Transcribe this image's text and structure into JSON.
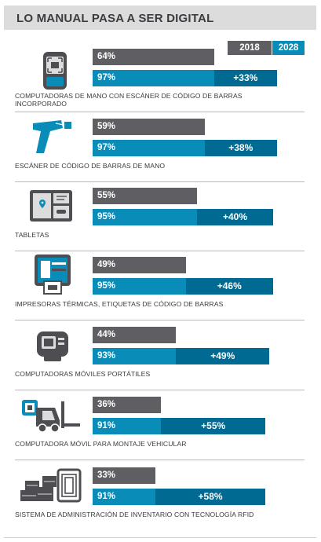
{
  "title": "LO MANUAL PASA A SER DIGITAL",
  "legend": {
    "2018": "2018",
    "2028": "2028"
  },
  "colors": {
    "y2018": "#5f5f63",
    "y2028": "#0a8cb8",
    "increase": "#006a92",
    "title_bg": "#dcdcdd"
  },
  "chart_data": {
    "type": "bar",
    "title": "LO MANUAL PASA A SER DIGITAL",
    "orientation": "horizontal",
    "ylim": [
      0,
      100
    ],
    "categories": [
      "COMPUTADORAS DE MANO CON ESCÁNER DE CÓDIGO DE BARRAS INCORPORADO",
      "ESCÁNER DE CÓDIGO DE BARRAS DE MANO",
      "TABLETAS",
      "IMPRESORAS TÉRMICAS, ETIQUETAS DE CÓDIGO DE BARRAS",
      "COMPUTADORAS MÓVILES PORTÁTILES",
      "COMPUTADORA MÓVIL PARA MONTAJE VEHICULAR",
      "SISTEMA DE ADMINISTRACIÓN DE INVENTARIO CON TECNOLOGÍA RFID"
    ],
    "series": [
      {
        "name": "2018",
        "values": [
          64,
          59,
          55,
          49,
          44,
          36,
          33
        ]
      },
      {
        "name": "2028",
        "values": [
          97,
          97,
          95,
          95,
          93,
          91,
          91
        ]
      }
    ],
    "increase_labels": [
      "+33%",
      "+38%",
      "+40%",
      "+46%",
      "+49%",
      "+55%",
      "+58%"
    ]
  },
  "rows": [
    {
      "icon": "handheld-scanner-computer-icon",
      "label_line1": "COMPUTADORAS DE MANO CON ESCÁNER DE CÓDIGO DE BARRAS",
      "label_line2": "INCORPORADO",
      "v2018_text": "64%",
      "v2028_text": "97%",
      "inc_text": "+33%"
    },
    {
      "icon": "barcode-scanner-gun-icon",
      "label_line1": "ESCÁNER DE CÓDIGO DE BARRAS DE MANO",
      "label_line2": "",
      "v2018_text": "59%",
      "v2028_text": "97%",
      "inc_text": "+38%"
    },
    {
      "icon": "tablet-map-icon",
      "label_line1": "TABLETAS",
      "label_line2": "",
      "v2018_text": "55%",
      "v2028_text": "95%",
      "inc_text": "+40%"
    },
    {
      "icon": "thermal-printer-icon",
      "label_line1": "IMPRESORAS TÉRMICAS, ETIQUETAS DE CÓDIGO DE BARRAS",
      "label_line2": "",
      "v2018_text": "49%",
      "v2028_text": "95%",
      "inc_text": "+46%"
    },
    {
      "icon": "mobile-computer-icon",
      "label_line1": "COMPUTADORAS MÓVILES PORTÁTILES",
      "label_line2": "",
      "v2018_text": "44%",
      "v2028_text": "93%",
      "inc_text": "+49%"
    },
    {
      "icon": "forklift-computer-icon",
      "label_line1": "COMPUTADORA MÓVIL PARA MONTAJE VEHICULAR",
      "label_line2": "",
      "v2018_text": "36%",
      "v2028_text": "91%",
      "inc_text": "+55%"
    },
    {
      "icon": "rfid-inventory-icon",
      "label_line1": "SISTEMA DE ADMINISTRACIÓN DE INVENTARIO CON TECNOLOGÍA RFID",
      "label_line2": "",
      "v2018_text": "33%",
      "v2028_text": "91%",
      "inc_text": "+58%"
    }
  ]
}
